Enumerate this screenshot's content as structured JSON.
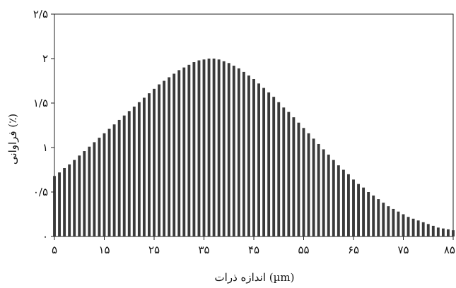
{
  "chart_data": {
    "type": "bar",
    "xlabel": "اندازه ذرات (µm)",
    "ylabel": "فراوانی (٪)",
    "xlim": [
      5,
      85
    ],
    "ylim": [
      0,
      2.5
    ],
    "x_ticks": [
      5,
      15,
      25,
      35,
      45,
      55,
      65,
      75,
      85
    ],
    "x_tick_labels": [
      "۵",
      "۱۵",
      "۲۵",
      "۳۵",
      "۴۵",
      "۵۵",
      "۶۵",
      "۷۵",
      "۸۵"
    ],
    "y_ticks": [
      0,
      0.5,
      1,
      1.5,
      2,
      2.5
    ],
    "y_tick_labels": [
      "۰",
      "۰/۵",
      "۱",
      "۱/۵",
      "۲",
      "۲/۵"
    ],
    "grid": false,
    "bar_color": "#3a3a3a",
    "x": [
      5,
      6,
      7,
      8,
      9,
      10,
      11,
      12,
      13,
      14,
      15,
      16,
      17,
      18,
      19,
      20,
      21,
      22,
      23,
      24,
      25,
      26,
      27,
      28,
      29,
      30,
      31,
      32,
      33,
      34,
      35,
      36,
      37,
      38,
      39,
      40,
      41,
      42,
      43,
      44,
      45,
      46,
      47,
      48,
      49,
      50,
      51,
      52,
      53,
      54,
      55,
      56,
      57,
      58,
      59,
      60,
      61,
      62,
      63,
      64,
      65,
      66,
      67,
      68,
      69,
      70,
      71,
      72,
      73,
      74,
      75,
      76,
      77,
      78,
      79,
      80,
      81,
      82,
      83,
      84,
      85
    ],
    "values": [
      0.68,
      0.72,
      0.77,
      0.81,
      0.86,
      0.91,
      0.96,
      1.01,
      1.06,
      1.11,
      1.16,
      1.21,
      1.26,
      1.31,
      1.36,
      1.41,
      1.46,
      1.51,
      1.56,
      1.61,
      1.66,
      1.71,
      1.75,
      1.79,
      1.83,
      1.87,
      1.9,
      1.93,
      1.96,
      1.98,
      1.99,
      2.0,
      2.0,
      1.99,
      1.97,
      1.95,
      1.92,
      1.89,
      1.85,
      1.81,
      1.77,
      1.72,
      1.67,
      1.62,
      1.57,
      1.51,
      1.45,
      1.4,
      1.34,
      1.28,
      1.22,
      1.16,
      1.1,
      1.04,
      0.98,
      0.92,
      0.86,
      0.8,
      0.75,
      0.7,
      0.64,
      0.59,
      0.55,
      0.5,
      0.46,
      0.42,
      0.38,
      0.34,
      0.31,
      0.28,
      0.25,
      0.22,
      0.2,
      0.18,
      0.16,
      0.14,
      0.12,
      0.1,
      0.09,
      0.08,
      0.07
    ]
  }
}
